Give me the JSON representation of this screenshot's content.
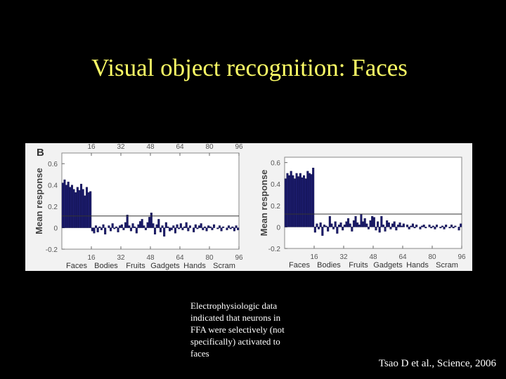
{
  "title": "Visual object recognition: Faces",
  "body": [
    "Electrophysiologic data",
    "indicated that neurons in",
    "FFA were selectively (not",
    "specifically) activated to",
    "faces"
  ],
  "citation": "Tsao D et al., Science, 2006",
  "chart_data": [
    {
      "type": "bar",
      "title": "B",
      "y_label": "Mean response",
      "color": "#1c1c6c",
      "groups": [
        "Faces",
        "Bodies",
        "Fruits",
        "Gadgets",
        "Hands",
        "Scram"
      ],
      "x": [
        1,
        2,
        3,
        4,
        5,
        6,
        7,
        8,
        9,
        10,
        11,
        12,
        13,
        14,
        15,
        16,
        17,
        18,
        19,
        20,
        21,
        22,
        23,
        24,
        25,
        26,
        27,
        28,
        29,
        30,
        31,
        32,
        33,
        34,
        35,
        36,
        37,
        38,
        39,
        40,
        41,
        42,
        43,
        44,
        45,
        46,
        47,
        48,
        49,
        50,
        51,
        52,
        53,
        54,
        55,
        56,
        57,
        58,
        59,
        60,
        61,
        62,
        63,
        64,
        65,
        66,
        67,
        68,
        69,
        70,
        71,
        72,
        73,
        74,
        75,
        76,
        77,
        78,
        79,
        80,
        81,
        82,
        83,
        84,
        85,
        86,
        87,
        88,
        89,
        90,
        91,
        92,
        93,
        94,
        95,
        96
      ],
      "values": [
        0.42,
        0.45,
        0.4,
        0.43,
        0.38,
        0.4,
        0.36,
        0.33,
        0.38,
        0.35,
        0.41,
        0.36,
        0.3,
        0.38,
        0.33,
        0.34,
        -0.03,
        -0.05,
        0.02,
        -0.04,
        0.01,
        -0.02,
        0.03,
        -0.06,
        0.0,
        0.02,
        -0.03,
        0.04,
        -0.01,
        0.01,
        -0.04,
        0.02,
        0.03,
        -0.02,
        0.05,
        0.12,
        0.02,
        -0.03,
        0.04,
        0.01,
        -0.05,
        0.03,
        0.06,
        0.08,
        0.02,
        -0.02,
        0.05,
        0.1,
        0.14,
        0.04,
        -0.06,
        0.03,
        0.08,
        -0.04,
        0.02,
        -0.08,
        0.05,
        0.01,
        -0.03,
        -0.02,
        0.02,
        -0.05,
        0.03,
        -0.01,
        0.04,
        -0.02,
        0.01,
        0.05,
        -0.03,
        0.02,
        0.0,
        -0.04,
        0.03,
        -0.01,
        0.02,
        0.04,
        -0.02,
        0.01,
        -0.03,
        0.02,
        0.01,
        -0.02,
        0.03,
        0.0,
        -0.01,
        0.02,
        -0.03,
        0.01,
        0.0,
        -0.02,
        0.02,
        -0.01,
        0.01,
        -0.03,
        0.02,
        -0.02
      ],
      "xlim": [
        0,
        96
      ],
      "xticks": [
        16,
        32,
        48,
        64,
        80,
        96
      ],
      "xticks_top": true,
      "ylim": [
        -0.2,
        0.7
      ],
      "yticks": [
        -0.2,
        0,
        0.2,
        0.4,
        0.6
      ],
      "reference_line": 0.11
    },
    {
      "type": "bar",
      "y_label": "Mean response",
      "color": "#1c1c6c",
      "groups": [
        "Faces",
        "Bodies",
        "Fruits",
        "Gadgets",
        "Hands",
        "Scram"
      ],
      "x": [
        1,
        2,
        3,
        4,
        5,
        6,
        7,
        8,
        9,
        10,
        11,
        12,
        13,
        14,
        15,
        16,
        17,
        18,
        19,
        20,
        21,
        22,
        23,
        24,
        25,
        26,
        27,
        28,
        29,
        30,
        31,
        32,
        33,
        34,
        35,
        36,
        37,
        38,
        39,
        40,
        41,
        42,
        43,
        44,
        45,
        46,
        47,
        48,
        49,
        50,
        51,
        52,
        53,
        54,
        55,
        56,
        57,
        58,
        59,
        60,
        61,
        62,
        63,
        64,
        65,
        66,
        67,
        68,
        69,
        70,
        71,
        72,
        73,
        74,
        75,
        76,
        77,
        78,
        79,
        80,
        81,
        82,
        83,
        84,
        85,
        86,
        87,
        88,
        89,
        90,
        91,
        92,
        93,
        94,
        95,
        96
      ],
      "values": [
        0.45,
        0.5,
        0.48,
        0.52,
        0.48,
        0.45,
        0.5,
        0.47,
        0.5,
        0.46,
        0.48,
        0.45,
        0.52,
        0.5,
        0.49,
        0.55,
        -0.05,
        0.03,
        -0.02,
        0.04,
        -0.08,
        0.02,
        0.01,
        -0.04,
        0.1,
        0.03,
        -0.02,
        0.05,
        -0.06,
        0.02,
        0.04,
        -0.03,
        0.02,
        0.05,
        0.08,
        0.03,
        -0.04,
        0.06,
        0.1,
        0.04,
        0.02,
        0.12,
        0.05,
        0.08,
        0.03,
        -0.02,
        0.06,
        0.1,
        0.09,
        -0.03,
        0.05,
        -0.05,
        0.1,
        0.02,
        -0.04,
        0.06,
        0.04,
        -0.02,
        0.03,
        0.05,
        -0.03,
        0.02,
        0.04,
        0.01,
        0.03,
        0.0,
        0.02,
        -0.02,
        0.01,
        0.03,
        -0.01,
        0.02,
        0.0,
        -0.02,
        0.01,
        0.02,
        -0.01,
        0.0,
        0.02,
        -0.01,
        0.01,
        -0.02,
        0.02,
        0.0,
        -0.01,
        0.01,
        -0.02,
        0.02,
        0.0,
        -0.01,
        0.02,
        -0.01,
        0.01,
        0.0,
        -0.03,
        0.03
      ],
      "xlim": [
        0,
        96
      ],
      "xticks": [
        16,
        32,
        48,
        64,
        80,
        96
      ],
      "xticks_top": false,
      "ylim": [
        -0.2,
        0.65
      ],
      "yticks": [
        -0.2,
        0,
        0.2,
        0.4,
        0.6
      ],
      "reference_line": 0.12
    }
  ]
}
